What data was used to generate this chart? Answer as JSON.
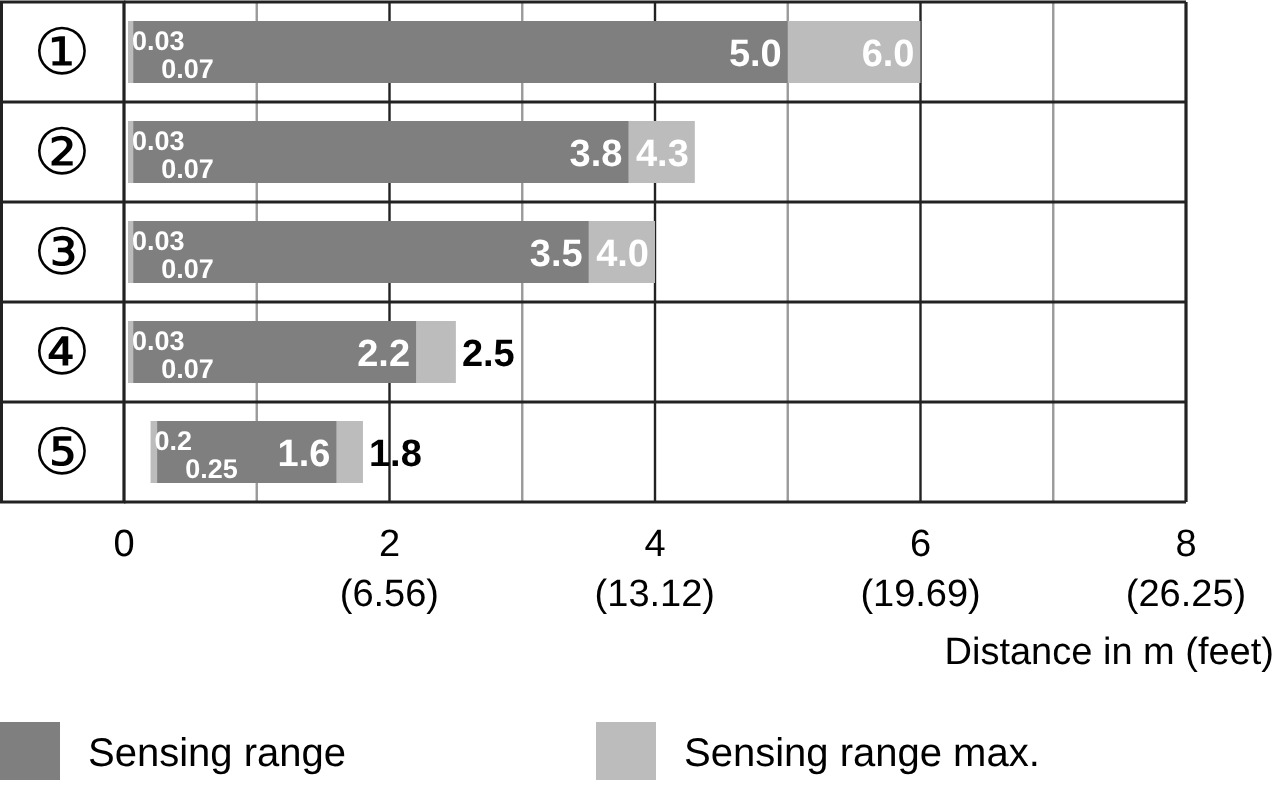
{
  "chart_data": {
    "type": "bar",
    "orientation": "horizontal",
    "xlabel": "Distance in m (feet)",
    "categories": [
      "①",
      "②",
      "③",
      "④",
      "⑤"
    ],
    "series": [
      {
        "name": "Sensing range",
        "color": "#7f7f7f",
        "base": [
          0.07,
          0.07,
          0.07,
          0.07,
          0.25
        ],
        "values": [
          4.93,
          3.73,
          3.43,
          2.13,
          1.35
        ],
        "value_labels": [
          "5.0",
          "3.8",
          "3.5",
          "2.2",
          "1.6"
        ]
      },
      {
        "name": "Sensing range max.",
        "color": "#bcbcbc",
        "base": [
          0.03,
          0.03,
          0.03,
          0.03,
          0.2
        ],
        "values": [
          5.97,
          4.27,
          3.97,
          2.47,
          1.6
        ],
        "value_labels": [
          "6.0",
          "4.3",
          "4.0",
          "2.5",
          "1.8"
        ]
      }
    ],
    "annotations": [
      {
        "text": "0.03",
        "x": 0.03,
        "y": "①"
      },
      {
        "text": "0.07",
        "x": 0.07,
        "y": "①"
      },
      {
        "text": "0.03",
        "x": 0.03,
        "y": "②"
      },
      {
        "text": "0.07",
        "x": 0.07,
        "y": "②"
      },
      {
        "text": "0.03",
        "x": 0.03,
        "y": "③"
      },
      {
        "text": "0.07",
        "x": 0.07,
        "y": "③"
      },
      {
        "text": "0.03",
        "x": 0.03,
        "y": "④"
      },
      {
        "text": "0.07",
        "x": 0.07,
        "y": "④"
      },
      {
        "text": "0.2",
        "x": 0.2,
        "y": "⑤"
      },
      {
        "text": "0.25",
        "x": 0.25,
        "y": "⑤"
      }
    ],
    "xlim": [
      0,
      8
    ],
    "xticks": [
      0,
      {
        "value": 1,
        "label": null
      },
      2,
      {
        "value": 3,
        "label": null
      },
      4,
      {
        "value": 5,
        "label": null
      },
      6,
      {
        "value": 7,
        "label": null
      },
      8
    ],
    "x2lim": [
      0,
      26.25
    ],
    "x2ticks": [
      {
        "value": 6.56,
        "label": "(6.56)"
      },
      {
        "value": 13.12,
        "label": "(13.12)"
      },
      {
        "value": 19.69,
        "label": "(19.69)"
      },
      {
        "value": 26.25,
        "label": "(26.25)"
      }
    ],
    "grid": "x",
    "legend": "bottom"
  }
}
